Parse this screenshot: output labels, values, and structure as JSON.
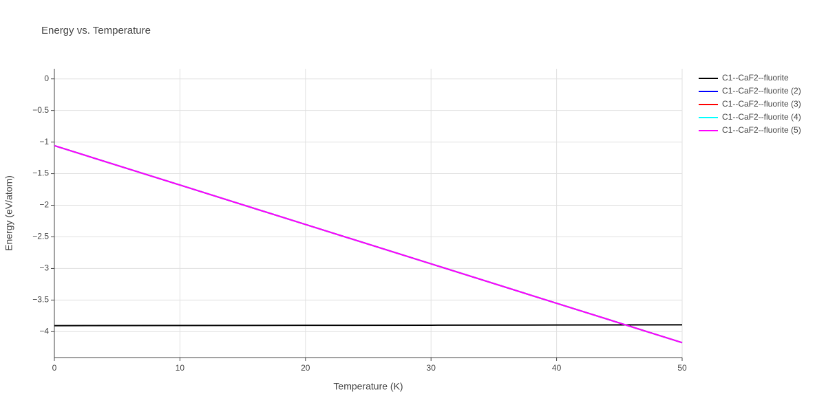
{
  "chart_data": {
    "type": "line",
    "title": "Energy vs. Temperature",
    "x_label": "Temperature (K)",
    "y_label": "Energy (eV/atom)",
    "x": [
      0,
      10,
      20,
      30,
      40,
      50
    ],
    "series": [
      {
        "name": "C1--CaF2--fluorite",
        "color": "#000000",
        "values": [
          -3.905,
          -3.902,
          -3.9,
          -3.898,
          -3.895,
          -3.892
        ]
      },
      {
        "name": "C1--CaF2--fluorite (2)",
        "color": "#0000ff",
        "values": [
          -1.057,
          -1.68,
          -2.304,
          -2.927,
          -3.551,
          -4.174
        ]
      },
      {
        "name": "C1--CaF2--fluorite (3)",
        "color": "#ff0000",
        "values": [
          -1.057,
          -1.68,
          -2.304,
          -2.927,
          -3.551,
          -4.174
        ]
      },
      {
        "name": "C1--CaF2--fluorite (4)",
        "color": "#00ffff",
        "values": [
          -1.057,
          -1.68,
          -2.304,
          -2.927,
          -3.551,
          -4.174
        ]
      },
      {
        "name": "C1--CaF2--fluorite (5)",
        "color": "#ff00ff",
        "values": [
          -1.057,
          -1.68,
          -2.304,
          -2.927,
          -3.551,
          -4.174
        ]
      }
    ],
    "xlim": [
      0,
      50
    ],
    "xticks": [
      0,
      10,
      20,
      30,
      40,
      50
    ],
    "ylim": [
      -4.41,
      0.16
    ],
    "yticks": [
      0,
      {
        "value": -0.5,
        "label": "−0.5"
      },
      {
        "value": -1,
        "label": "−1"
      },
      {
        "value": -1.5,
        "label": "−1.5"
      },
      {
        "value": -2,
        "label": "−2"
      },
      {
        "value": -2.5,
        "label": "−2.5"
      },
      {
        "value": -3,
        "label": "−3"
      },
      {
        "value": -3.5,
        "label": "−3.5"
      },
      {
        "value": -4,
        "label": "−4"
      }
    ],
    "grid": true,
    "legend": "right"
  }
}
